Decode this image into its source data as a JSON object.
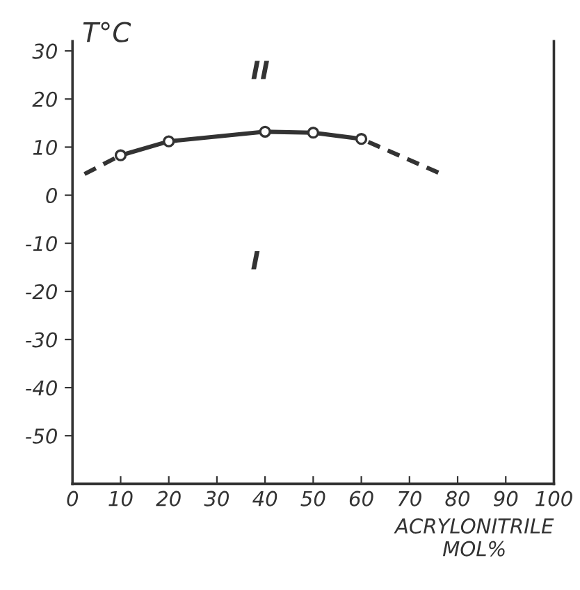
{
  "chart_data": {
    "type": "line",
    "xlabel": "ACRYLONITRILE\nMOL%",
    "ylabel": "T°C",
    "series": [
      {
        "color": "#333333",
        "x": [
          10,
          20,
          40,
          50,
          60
        ],
        "values": [
          8.3,
          11.2,
          13.2,
          13.0,
          11.7
        ],
        "marker": "circle",
        "line_style": "solid"
      },
      {
        "color": "#333333",
        "x": [
          2.5,
          10
        ],
        "values": [
          4.4,
          8.3
        ],
        "marker": "none",
        "line_style": "dashed"
      },
      {
        "color": "#333333",
        "x": [
          76,
          60
        ],
        "values": [
          4.7,
          11.7
        ],
        "marker": "none",
        "line_style": "dashed"
      }
    ],
    "annotations": [
      "II",
      "I"
    ],
    "xlim": [
      0,
      100
    ],
    "ylim": [
      -60,
      32
    ],
    "xticks": [
      0,
      10,
      20,
      30,
      40,
      50,
      60,
      70,
      80,
      90,
      100
    ],
    "yticks": [
      30,
      20,
      10,
      0,
      -10,
      -20,
      -30,
      -40,
      -50
    ],
    "grid": false,
    "legend": false
  }
}
